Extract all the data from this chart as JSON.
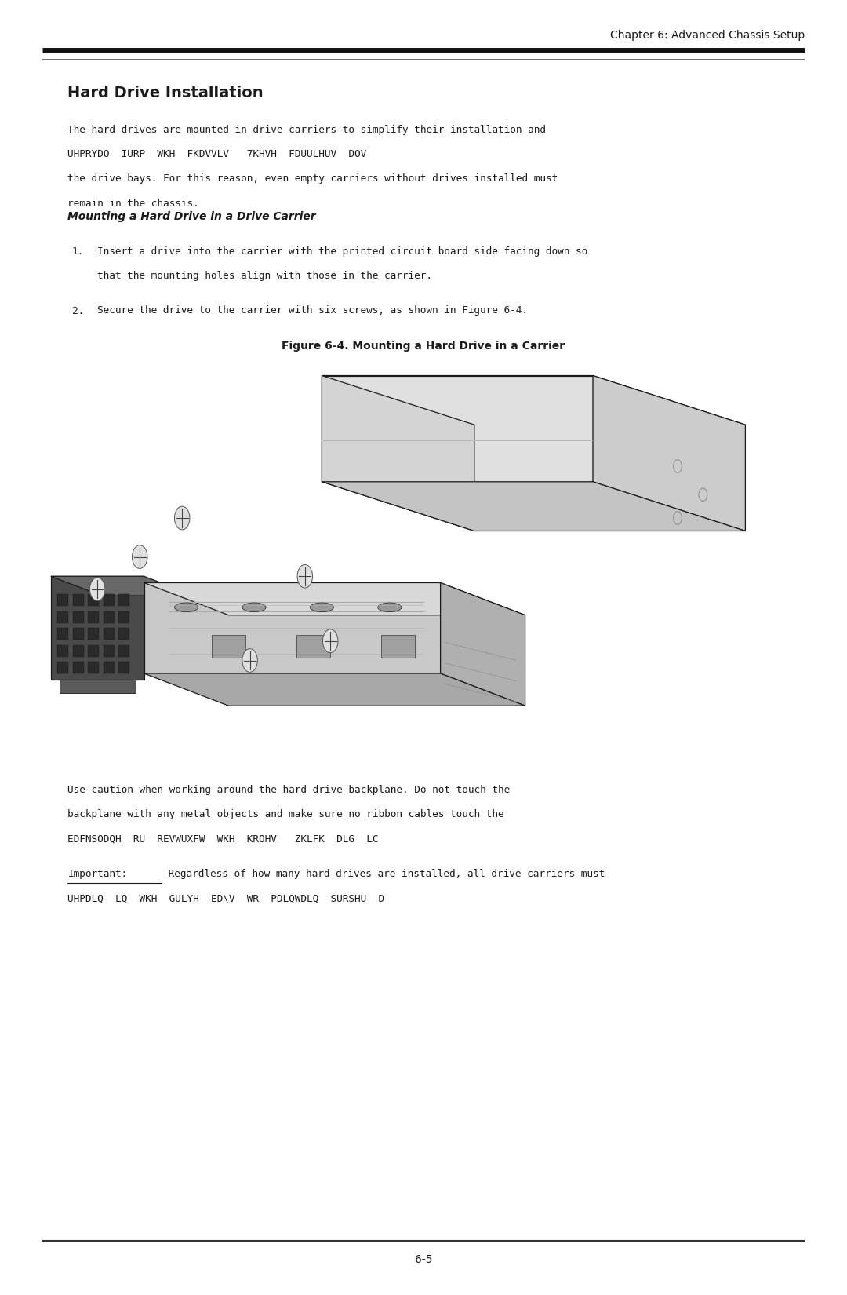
{
  "chapter_header": "Chapter 6: Advanced Chassis Setup",
  "page_number": "6-5",
  "section_title": "Hard Drive Installation",
  "para1_line1": "The hard drives are mounted in drive carriers to simplify their installation and",
  "para1_line2": "UHPRYDO  IURP  WKH  FKDVVLV   7KHVH  FDUULHUV  DOV",
  "para1_line3": "the drive bays. For this reason, even empty carriers without drives installed must",
  "para1_line4": "remain in the chassis.",
  "subsection_title": "Mounting a Hard Drive in a Drive Carrier",
  "step1a": "Insert a drive into the carrier with the printed circuit board side facing down so",
  "step1b": "that the mounting holes align with those in the carrier.",
  "step2": "Secure the drive to the carrier with six screws, as shown in Figure 6-4.",
  "figure_caption": "Figure 6-4. Mounting a Hard Drive in a Carrier",
  "para2_line1": "Use caution when working around the hard drive backplane. Do not touch the",
  "para2_line2": "backplane with any metal objects and make sure no ribbon cables touch the",
  "para2_line3": "EDFNSODQH  RU  REVWUXFW  WKH  KROHV   ZKLFK  DLG  LC",
  "important_label": "Important:",
  "para3_line1": " Regardless of how many hard drives are installed, all drive carriers must",
  "para3_line2": "UHPDLQ  LQ  WKH  GULYH  ED\\V  WR  PDLQWDLQ  SURSHU  D",
  "bg_color": "#ffffff",
  "text_color": "#1a1a1a",
  "mono_font": "DejaVu Sans Mono",
  "sans_font": "DejaVu Sans"
}
